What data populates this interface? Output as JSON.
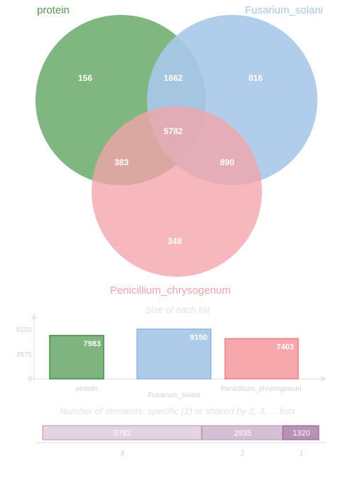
{
  "venn": {
    "sets": [
      {
        "name": "protein",
        "color": "#4f9a4f"
      },
      {
        "name": "Fusarium_solani",
        "color": "#a8c8ea"
      },
      {
        "name": "Penicillium_chrysogenum",
        "color": "#f4a4a9"
      }
    ],
    "regions": {
      "protein_only": "156",
      "fusarium_only": "816",
      "penicillium_only": "348",
      "protein_fusarium": "1662",
      "protein_penicillium": "383",
      "fusarium_penicillium": "890",
      "all_three": "5782"
    }
  },
  "chart_data": [
    {
      "type": "bar",
      "title": "Size of each list",
      "categories": [
        "protein",
        "Fusarium_solani",
        "Penicillium_chrysogenum"
      ],
      "values": [
        7983,
        9150,
        7403
      ],
      "value_labels": [
        "7983",
        "9150",
        "7403"
      ],
      "yticks": [
        "0",
        "4575",
        "9150"
      ],
      "ylim": [
        0,
        9150
      ],
      "colors": [
        "#7fb37f",
        "#aecbea",
        "#f6a8ad"
      ],
      "borders": [
        "#3f8f3f",
        "#8fb6df",
        "#ef8088"
      ]
    },
    {
      "type": "bar",
      "title": "Number of elements: specific (1) or shared by 2, 3, ... lists",
      "categories": [
        "3",
        "2",
        "1"
      ],
      "values": [
        5782,
        2935,
        1320
      ],
      "value_labels": [
        "5782",
        "2935",
        "1320"
      ],
      "colors": [
        "#e3d3e3",
        "#d4bfd4",
        "#b890b8"
      ]
    }
  ]
}
